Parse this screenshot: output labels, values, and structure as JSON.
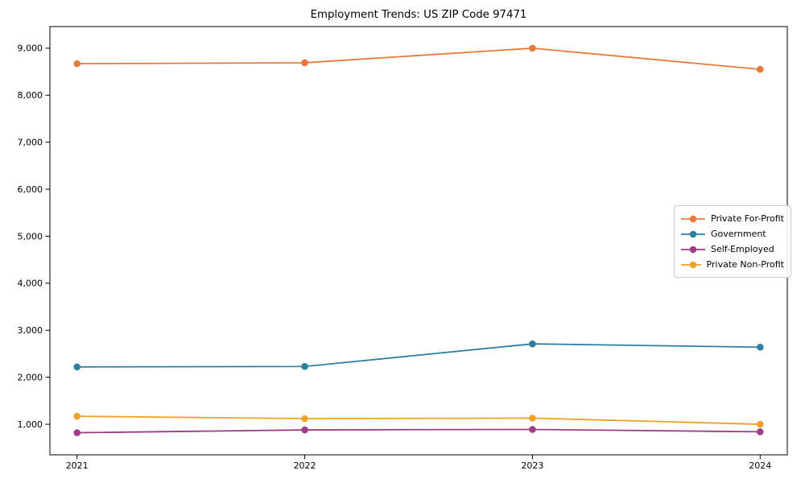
{
  "chart_data": {
    "type": "line",
    "title": "Employment Trends: US ZIP Code 97471",
    "xlabel": "",
    "ylabel": "",
    "x": [
      2021,
      2022,
      2023,
      2024
    ],
    "x_tick_labels": [
      "2021",
      "2022",
      "2023",
      "2024"
    ],
    "yticks": [
      1000,
      2000,
      3000,
      4000,
      5000,
      6000,
      7000,
      8000,
      9000
    ],
    "ytick_labels": [
      "1,000",
      "2,000",
      "3,000",
      "4,000",
      "5,000",
      "6,000",
      "7,000",
      "8,000",
      "9,000"
    ],
    "ylim": [
      350,
      9460
    ],
    "grid": false,
    "marker": "circle",
    "legend_position": "center right",
    "series": [
      {
        "name": "Private For-Profit",
        "color": "#e8793a",
        "values": [
          8670,
          8690,
          9000,
          8550
        ]
      },
      {
        "name": "Government",
        "color": "#2f7fa1",
        "values": [
          2220,
          2230,
          2710,
          2640
        ]
      },
      {
        "name": "Self-Employed",
        "color": "#9d3c87",
        "values": [
          820,
          880,
          890,
          840
        ]
      },
      {
        "name": "Private Non-Profit",
        "color": "#efa12b",
        "values": [
          1170,
          1120,
          1130,
          1000
        ]
      }
    ]
  }
}
